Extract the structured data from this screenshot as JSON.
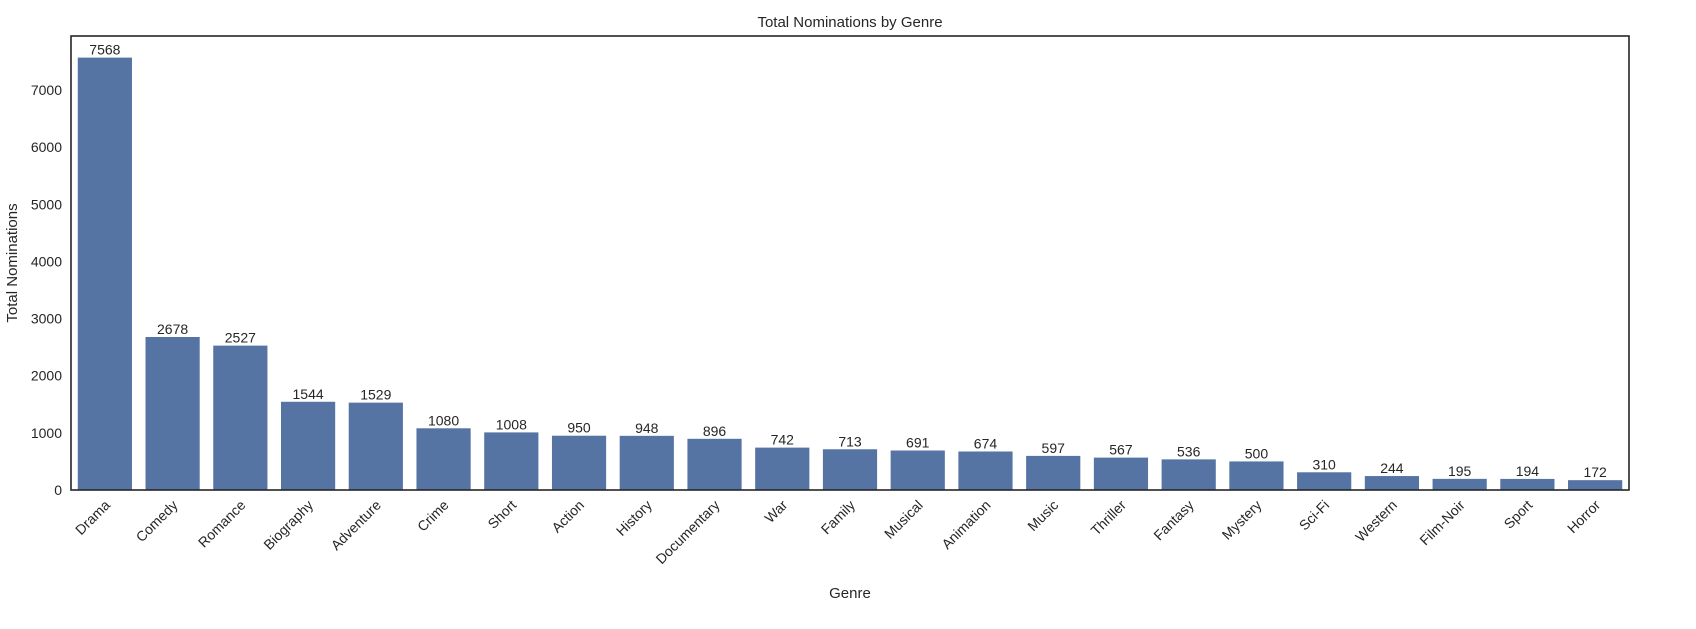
{
  "chart_data": {
    "type": "bar",
    "title": "Total Nominations by Genre",
    "xlabel": "Genre",
    "ylabel": "Total Nominations",
    "categories": [
      "Drama",
      "Comedy",
      "Romance",
      "Biography",
      "Adventure",
      "Crime",
      "Short",
      "Action",
      "History",
      "Documentary",
      "War",
      "Family",
      "Musical",
      "Animation",
      "Music",
      "Thriller",
      "Fantasy",
      "Mystery",
      "Sci-Fi",
      "Western",
      "Film-Noir",
      "Sport",
      "Horror"
    ],
    "values": [
      7568,
      2678,
      2527,
      1544,
      1529,
      1080,
      1008,
      950,
      948,
      896,
      742,
      713,
      691,
      674,
      597,
      567,
      536,
      500,
      310,
      244,
      195,
      194,
      172
    ],
    "ylim": [
      0,
      7946
    ],
    "yticks": [
      0,
      1000,
      2000,
      3000,
      4000,
      5000,
      6000,
      7000
    ],
    "grid": false,
    "legend": "none",
    "bar_color": "#5573a3",
    "data_labels": true
  }
}
